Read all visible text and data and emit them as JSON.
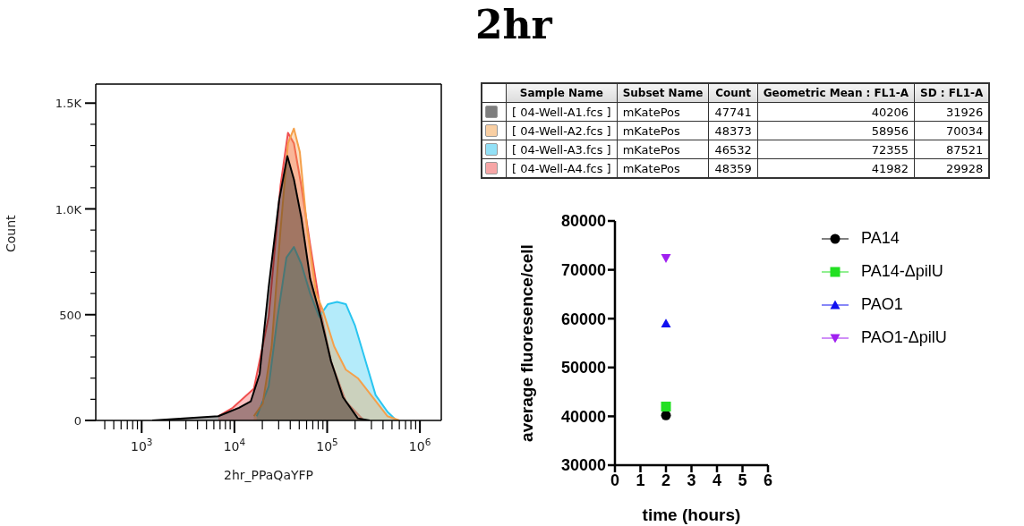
{
  "chart_data": [
    {
      "type": "area",
      "xlabel": "2hr_PPaQaYFP",
      "ylabel": "Count",
      "log": "x",
      "grid": false,
      "xlim": [
        320,
        1700000
      ],
      "xticks": [
        {
          "value": 400,
          "label": null
        },
        {
          "value": 500,
          "label": null
        },
        {
          "value": 600,
          "label": null
        },
        {
          "value": 700,
          "label": null
        },
        {
          "value": 800,
          "label": null
        },
        {
          "value": 900,
          "label": null
        },
        {
          "value": 1000,
          "label": "10$^{3}$"
        },
        {
          "value": 2000,
          "label": null
        },
        {
          "value": 3000,
          "label": null
        },
        {
          "value": 4000,
          "label": null
        },
        {
          "value": 5000,
          "label": null
        },
        {
          "value": 6000,
          "label": null
        },
        {
          "value": 7000,
          "label": null
        },
        {
          "value": 8000,
          "label": null
        },
        {
          "value": 9000,
          "label": null
        },
        {
          "value": 10000,
          "label": "10$^{4}$"
        },
        {
          "value": 20000,
          "label": null
        },
        {
          "value": 30000,
          "label": null
        },
        {
          "value": 40000,
          "label": null
        },
        {
          "value": 50000,
          "label": null
        },
        {
          "value": 60000,
          "label": null
        },
        {
          "value": 70000,
          "label": null
        },
        {
          "value": 80000,
          "label": null
        },
        {
          "value": 90000,
          "label": null
        },
        {
          "value": 100000,
          "label": "10$^{5}$"
        },
        {
          "value": 200000,
          "label": null
        },
        {
          "value": 300000,
          "label": null
        },
        {
          "value": 400000,
          "label": null
        },
        {
          "value": 500000,
          "label": null
        },
        {
          "value": 600000,
          "label": null
        },
        {
          "value": 700000,
          "label": null
        },
        {
          "value": 800000,
          "label": null
        },
        {
          "value": 900000,
          "label": null
        },
        {
          "value": 1000000,
          "label": "10$^{6}$"
        }
      ],
      "ylim": [
        0,
        1590
      ],
      "yticks": [
        0,
        {
          "value": 100,
          "label": null
        },
        {
          "value": 200,
          "label": null
        },
        {
          "value": 300,
          "label": null
        },
        {
          "value": 400,
          "label": null
        },
        500,
        {
          "value": 600,
          "label": null
        },
        {
          "value": 700,
          "label": null
        },
        {
          "value": 800,
          "label": null
        },
        {
          "value": 900,
          "label": null
        },
        {
          "value": 1000,
          "label": "1.0K"
        },
        {
          "value": 1100,
          "label": null
        },
        {
          "value": 1200,
          "label": null
        },
        {
          "value": 1300,
          "label": null
        },
        {
          "value": 1400,
          "label": null
        },
        {
          "value": 1500,
          "label": "1.5K"
        }
      ],
      "series": [
        {
          "color": "#000000",
          "x": [
            1300,
            6700,
            11200,
            15000,
            18700,
            23400,
            30300,
            37200,
            43800,
            52600,
            65600,
            84900,
            110000,
            148000,
            214000,
            287000
          ],
          "values": [
            0,
            20,
            60,
            90,
            220,
            630,
            1040,
            1250,
            1140,
            960,
            670,
            490,
            280,
            110,
            10,
            0
          ]
        },
        {
          "color": "#f5a04a",
          "x": [
            16200,
            20200,
            25200,
            31400,
            37800,
            43800,
            50700,
            61000,
            76100,
            88300,
            119000,
            159000,
            214000,
            309000,
            448000,
            601000
          ],
          "values": [
            20,
            80,
            350,
            900,
            1310,
            1380,
            1270,
            900,
            600,
            530,
            350,
            240,
            200,
            110,
            20,
            0
          ]
        },
        {
          "color": "#29c5f0",
          "x": [
            17400,
            23400,
            29200,
            36400,
            43800,
            52600,
            65600,
            81900,
            102000,
            128000,
            159000,
            199000,
            248000,
            333000,
            448000,
            558000
          ],
          "values": [
            20,
            160,
            490,
            770,
            820,
            740,
            600,
            490,
            550,
            560,
            550,
            450,
            310,
            120,
            40,
            0
          ]
        },
        {
          "color": "#f05050",
          "x": [
            6700,
            9600,
            16200,
            23400,
            31400,
            37800,
            43800,
            52600,
            65600,
            84900,
            110000,
            159000,
            248000
          ],
          "values": [
            20,
            60,
            150,
            490,
            1110,
            1360,
            1310,
            1110,
            830,
            520,
            280,
            90,
            0
          ]
        }
      ]
    },
    {
      "type": "other",
      "title": "2hr",
      "categories": [
        "Sample Name",
        "Subset Name",
        "Count",
        "Geometric Mean : FL1-A",
        "SD : FL1-A"
      ],
      "y_categories": [
        "[ 04-Well-A1.fcs ]",
        "[ 04-Well-A2.fcs ]",
        "[ 04-Well-A3.fcs ]",
        "[ 04-Well-A4.fcs ]"
      ],
      "cell_labels": [
        [
          "mKatePos",
          "47741",
          "40206",
          "31926"
        ],
        [
          "mKatePos",
          "48373",
          "58956",
          "70034"
        ],
        [
          "mKatePos",
          "46532",
          "72355",
          "87521"
        ],
        [
          "mKatePos",
          "48359",
          "41982",
          "29928"
        ]
      ]
    },
    {
      "type": "scatter",
      "xlabel": "time (hours)",
      "ylabel": "average fluoresence/cell",
      "grid": false,
      "legend": "right",
      "xlim": [
        0,
        6
      ],
      "xticks": [
        0,
        1,
        2,
        3,
        4,
        5,
        6
      ],
      "ylim": [
        30000,
        80000
      ],
      "yticks": [
        30000,
        40000,
        50000,
        60000,
        70000,
        80000
      ],
      "series": [
        {
          "name": "PA14",
          "color": "#000000",
          "marker": "circle",
          "x": [
            2
          ],
          "values": [
            40200
          ]
        },
        {
          "name": "PA14-ΔpilU",
          "color": "#22e022",
          "marker": "square",
          "x": [
            2
          ],
          "values": [
            42000
          ]
        },
        {
          "name": "PAO1",
          "color": "#1010f0",
          "marker": "triangle",
          "x": [
            2
          ],
          "values": [
            59000
          ]
        },
        {
          "name": "PAO1-ΔpilU",
          "color": "#a020f0",
          "marker": "triangle-down",
          "x": [
            2
          ],
          "values": [
            72400
          ]
        }
      ]
    }
  ]
}
